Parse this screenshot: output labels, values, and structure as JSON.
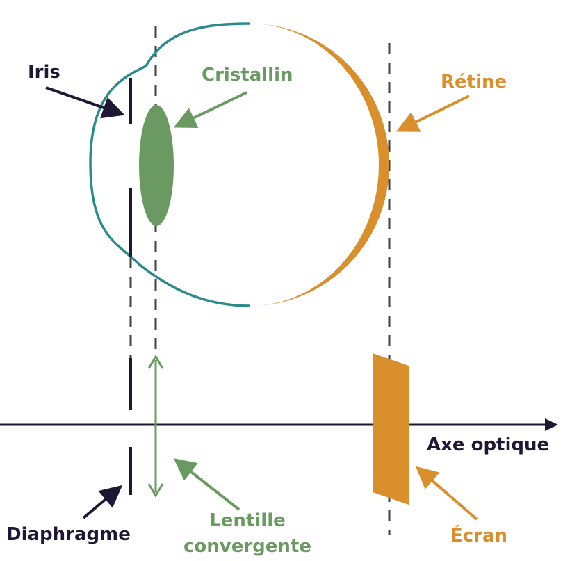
{
  "labels": {
    "iris": "Iris",
    "cristallin": "Cristallin",
    "retine": "Rétine",
    "axe_optique": "Axe optique",
    "diaphragme": "Diaphragme",
    "lentille_line1": "Lentille",
    "lentille_line2": "convergente",
    "ecran": "Écran"
  },
  "colors": {
    "dark": "#1f1733",
    "green": "#6a9a62",
    "orange": "#d9902c",
    "teal": "#2b8b8b",
    "dashed": "#404040"
  }
}
